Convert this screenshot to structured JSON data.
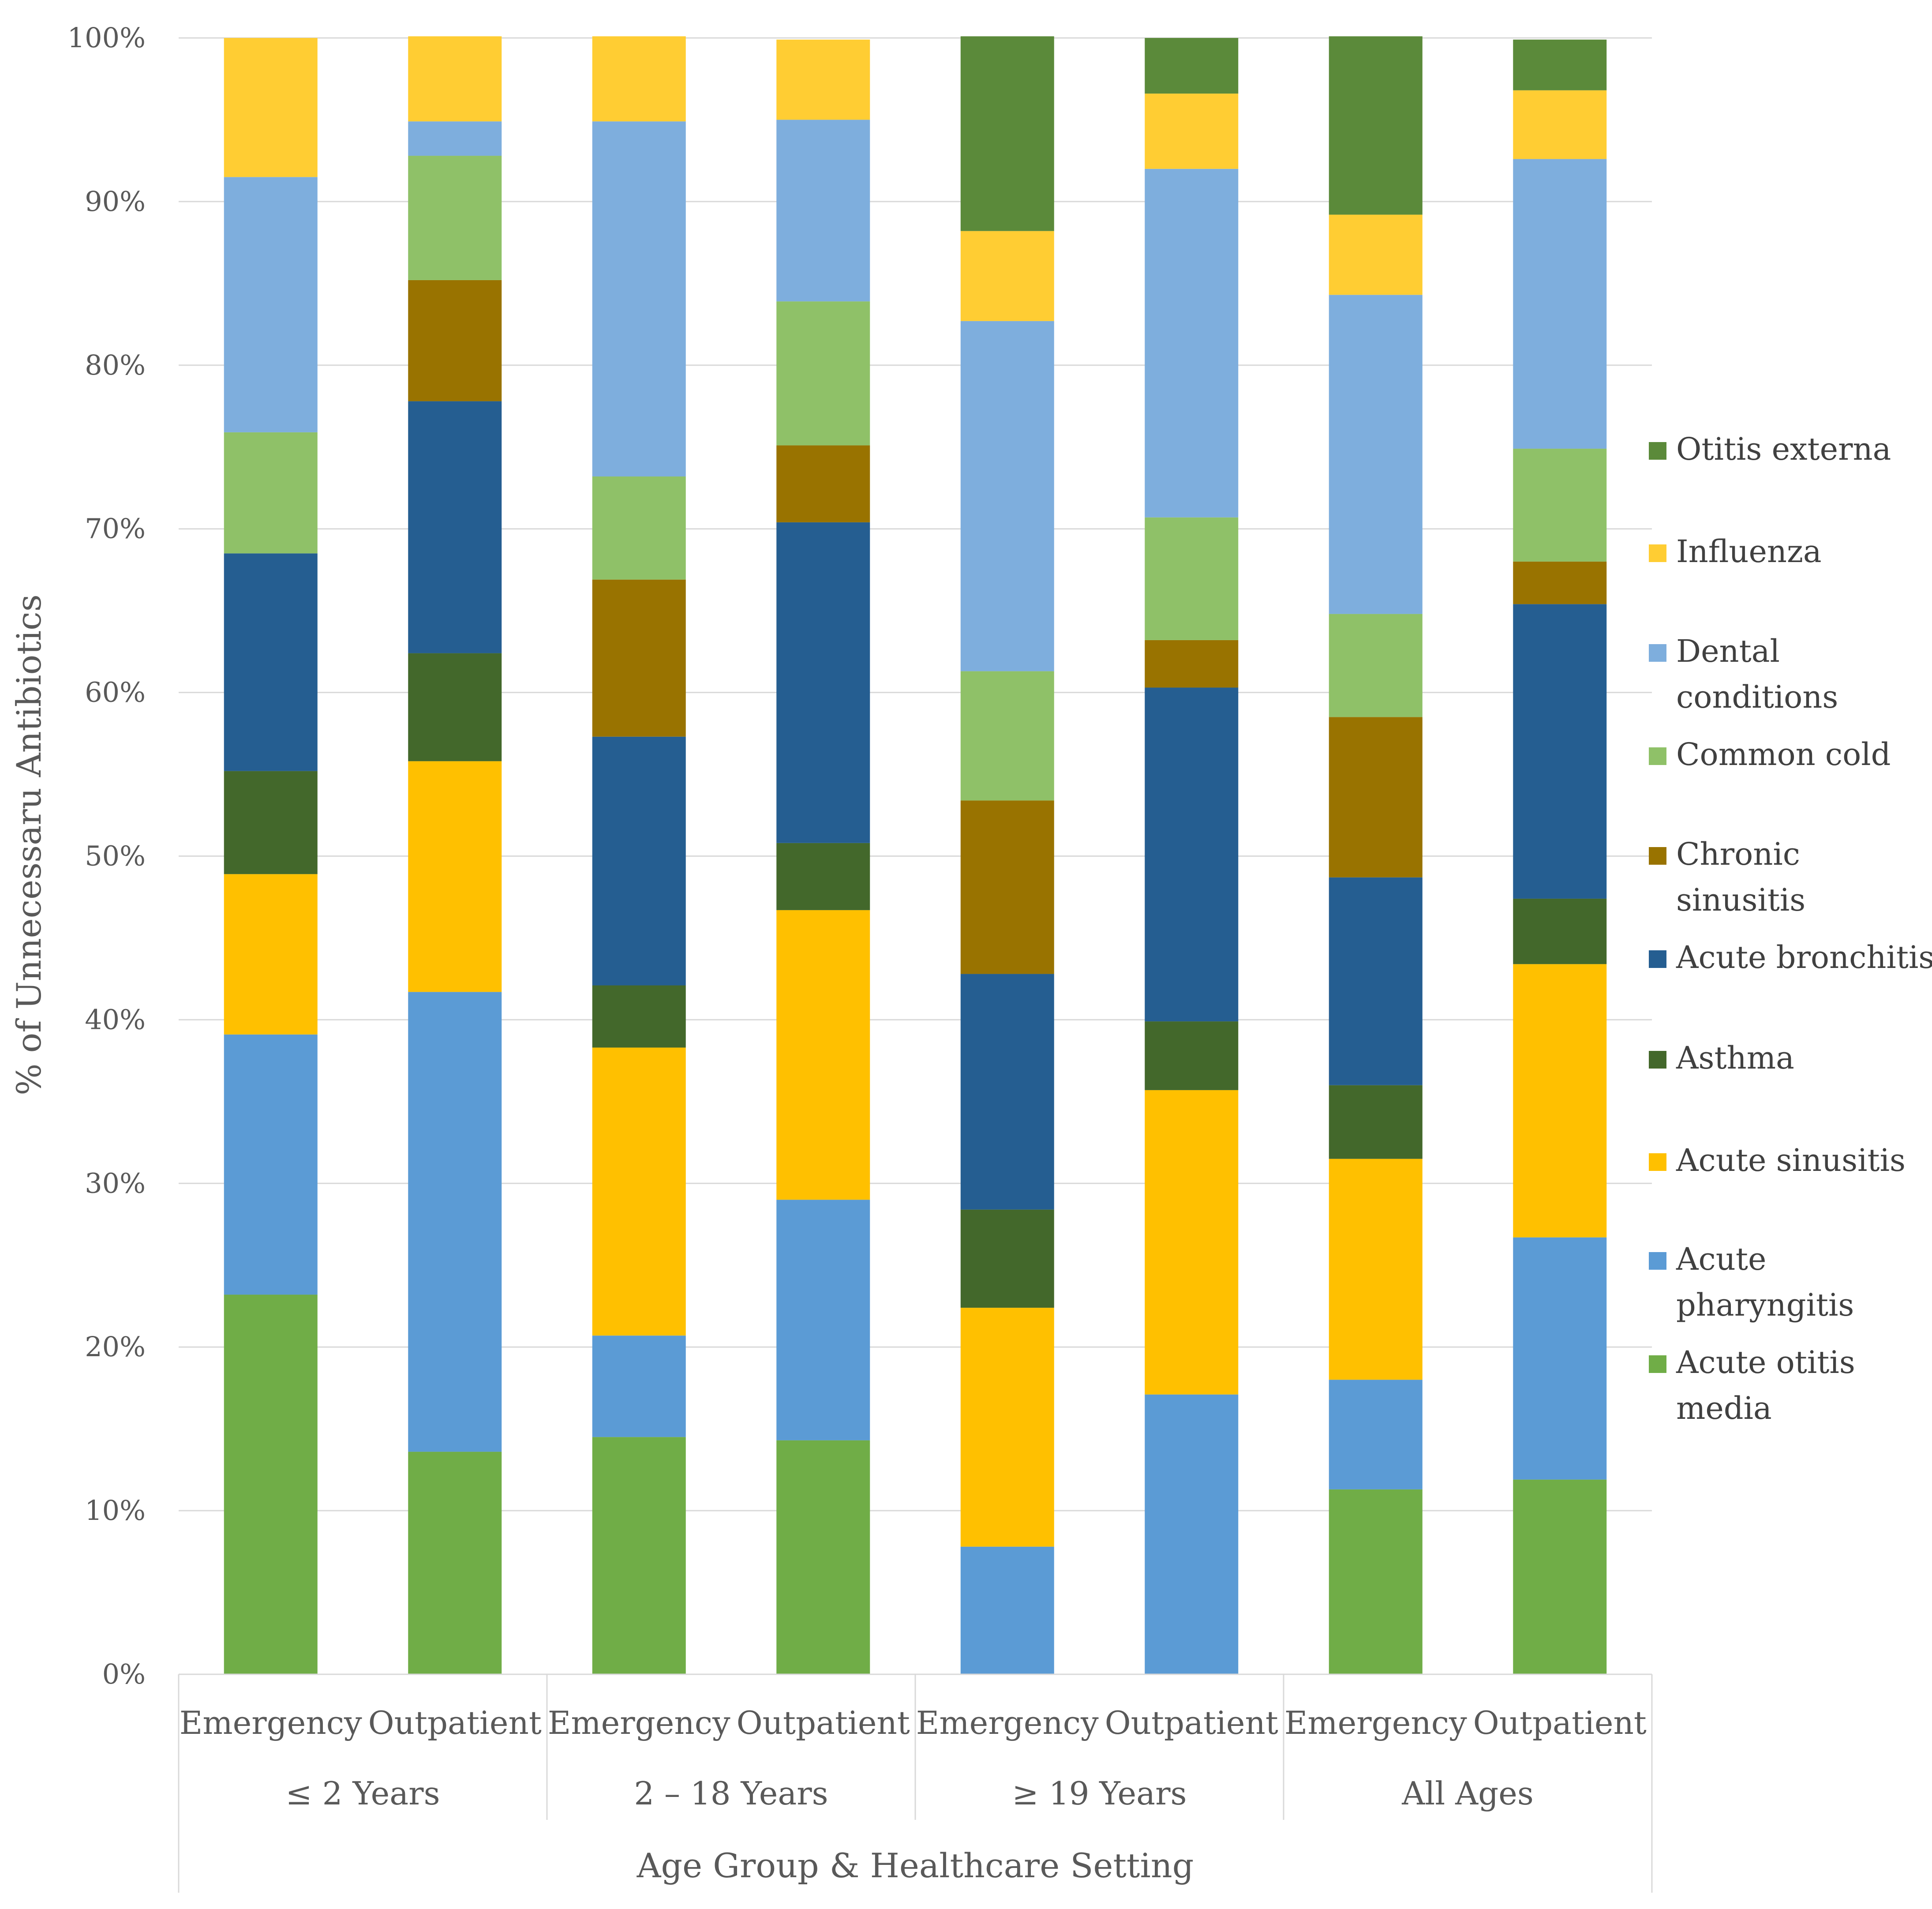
{
  "chart_data": {
    "type": "bar",
    "stacked": true,
    "normalized": true,
    "title": "",
    "xlabel": "Age Group & Healthcare Setting",
    "ylabel": "% of Unnecessaru Antibiotics",
    "ylim": [
      0,
      100
    ],
    "yticks": [
      "0%",
      "10%",
      "20%",
      "30%",
      "40%",
      "50%",
      "60%",
      "70%",
      "80%",
      "90%",
      "100%"
    ],
    "grid": "horizontal",
    "legend_position": "right",
    "groups": [
      "≤ 2 Years",
      "2  – 18 Years",
      "≥ 19 Years",
      "All Ages"
    ],
    "categories": [
      "Emergency",
      "Outpatient",
      "Emergency",
      "Outpatient",
      "Emergency",
      "Outpatient",
      "Emergency",
      "Outpatient"
    ],
    "series": [
      {
        "name": "Acute otitis media",
        "legend_lines": [
          "Acute otitis",
          "media"
        ],
        "color": "#70AD47",
        "values": [
          23.2,
          13.6,
          14.5,
          14.3,
          0,
          0,
          11.3,
          11.9
        ]
      },
      {
        "name": "Acute pharyngitis",
        "legend_lines": [
          "Acute",
          "pharyngitis"
        ],
        "color": "#5B9BD5",
        "values": [
          15.9,
          28.1,
          6.2,
          14.7,
          7.8,
          17.1,
          6.7,
          14.8
        ]
      },
      {
        "name": "Acute sinusitis",
        "legend_lines": [
          "Acute sinusitis"
        ],
        "color": "#FFC000",
        "values": [
          9.8,
          14.1,
          17.6,
          17.7,
          14.6,
          18.6,
          13.5,
          16.7
        ]
      },
      {
        "name": "Asthma",
        "legend_lines": [
          "Asthma"
        ],
        "color": "#43682B",
        "values": [
          6.3,
          6.6,
          3.8,
          4.1,
          6.0,
          4.2,
          4.5,
          4.0
        ]
      },
      {
        "name": "Acute bronchitis",
        "legend_lines": [
          "Acute bronchitis"
        ],
        "color": "#255E91",
        "values": [
          13.3,
          15.4,
          15.2,
          19.6,
          14.4,
          20.4,
          12.7,
          18.0
        ]
      },
      {
        "name": "Chronic sinusitis",
        "legend_lines": [
          "Chronic",
          "sinusitis"
        ],
        "color": "#997300",
        "values": [
          0,
          7.4,
          9.6,
          4.7,
          10.6,
          2.9,
          9.8,
          2.6
        ]
      },
      {
        "name": "Common cold",
        "legend_lines": [
          "Common cold"
        ],
        "color": "#8FC168",
        "values": [
          7.4,
          7.6,
          6.3,
          8.8,
          7.9,
          7.5,
          6.3,
          6.9
        ]
      },
      {
        "name": "Dental conditions",
        "legend_lines": [
          "Dental",
          "conditions"
        ],
        "color": "#7EAEDD",
        "values": [
          15.6,
          2.1,
          21.7,
          11.1,
          21.4,
          21.3,
          19.5,
          17.7
        ]
      },
      {
        "name": "Influenza",
        "legend_lines": [
          "Influenza"
        ],
        "color": "#FFCD33",
        "values": [
          8.5,
          5.2,
          5.2,
          4.9,
          5.5,
          4.6,
          4.9,
          4.2
        ]
      },
      {
        "name": "Otitis externa",
        "legend_lines": [
          "Otitis externa"
        ],
        "color": "#5B8A3A",
        "values": [
          0,
          0,
          0,
          0,
          11.9,
          3.4,
          10.9,
          3.1
        ]
      }
    ]
  },
  "colors": {
    "gridline": "#D9D9D9",
    "axis": "#D9D9D9",
    "text": "#595959"
  }
}
